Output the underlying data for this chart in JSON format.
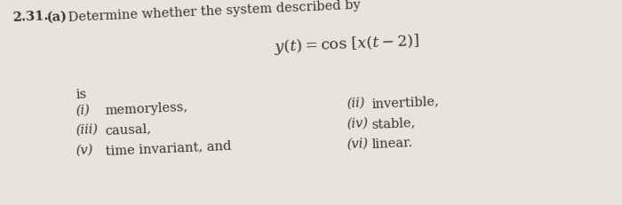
{
  "background_color": "#e8e4dc",
  "fig_width": 7.0,
  "fig_height": 2.32,
  "dpi": 100,
  "problem_number": "2.31.",
  "part_label": "(a)",
  "intro_text": "Determine whether the system described by",
  "equation": "$y(t) = \\cos\\,[x(t-2)]$",
  "is_text": "is",
  "left_items": [
    [
      "(i)",
      "memoryless,"
    ],
    [
      "(iii)",
      "causal,"
    ],
    [
      "(v)",
      "time invariant, and"
    ]
  ],
  "right_items": [
    [
      "(ii)",
      "invertible,"
    ],
    [
      "(iv)",
      "stable,"
    ],
    [
      "(vi)",
      "linear."
    ]
  ],
  "text_color": "#3a3530",
  "font_size_main": 10.5,
  "font_size_eq": 12.5,
  "rotation": 2.5
}
